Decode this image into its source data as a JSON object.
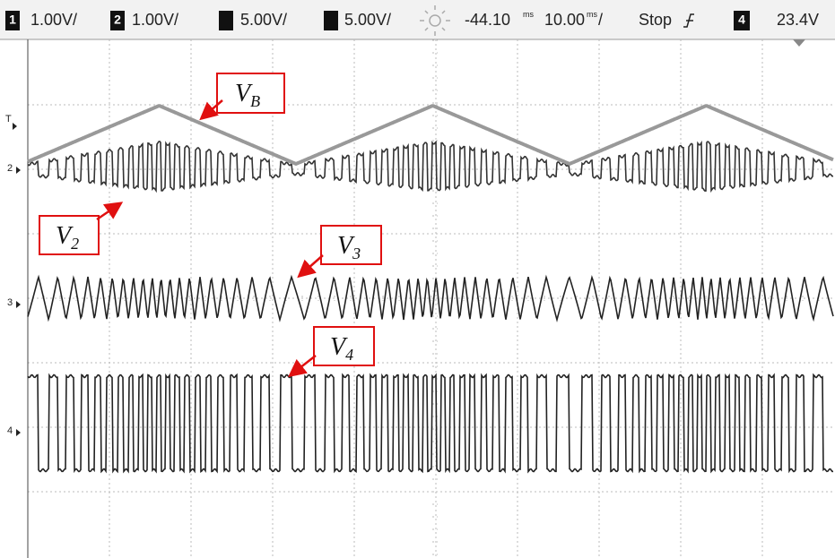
{
  "header": {
    "ch1": {
      "number": "1",
      "scale": "1.00V/"
    },
    "ch2": {
      "number": "2",
      "scale": "1.00V/"
    },
    "ch3": {
      "scale": "5.00V/"
    },
    "ch4": {
      "scale": "5.00V/"
    },
    "delay": {
      "value": "-44.10",
      "unit": "ms"
    },
    "timebase": {
      "value": "10.00",
      "unit": "ms",
      "suffix": "/"
    },
    "run_state": "Stop",
    "trigger": {
      "source": "4",
      "level": "23.4V"
    }
  },
  "markers": {
    "trigger": "T",
    "ch2": "2",
    "ch3": "3",
    "ch4": "4"
  },
  "annotations": [
    {
      "main": "V",
      "sub": "B"
    },
    {
      "main": "V",
      "sub": "2"
    },
    {
      "main": "V",
      "sub": "3"
    },
    {
      "main": "V",
      "sub": "4"
    }
  ]
}
